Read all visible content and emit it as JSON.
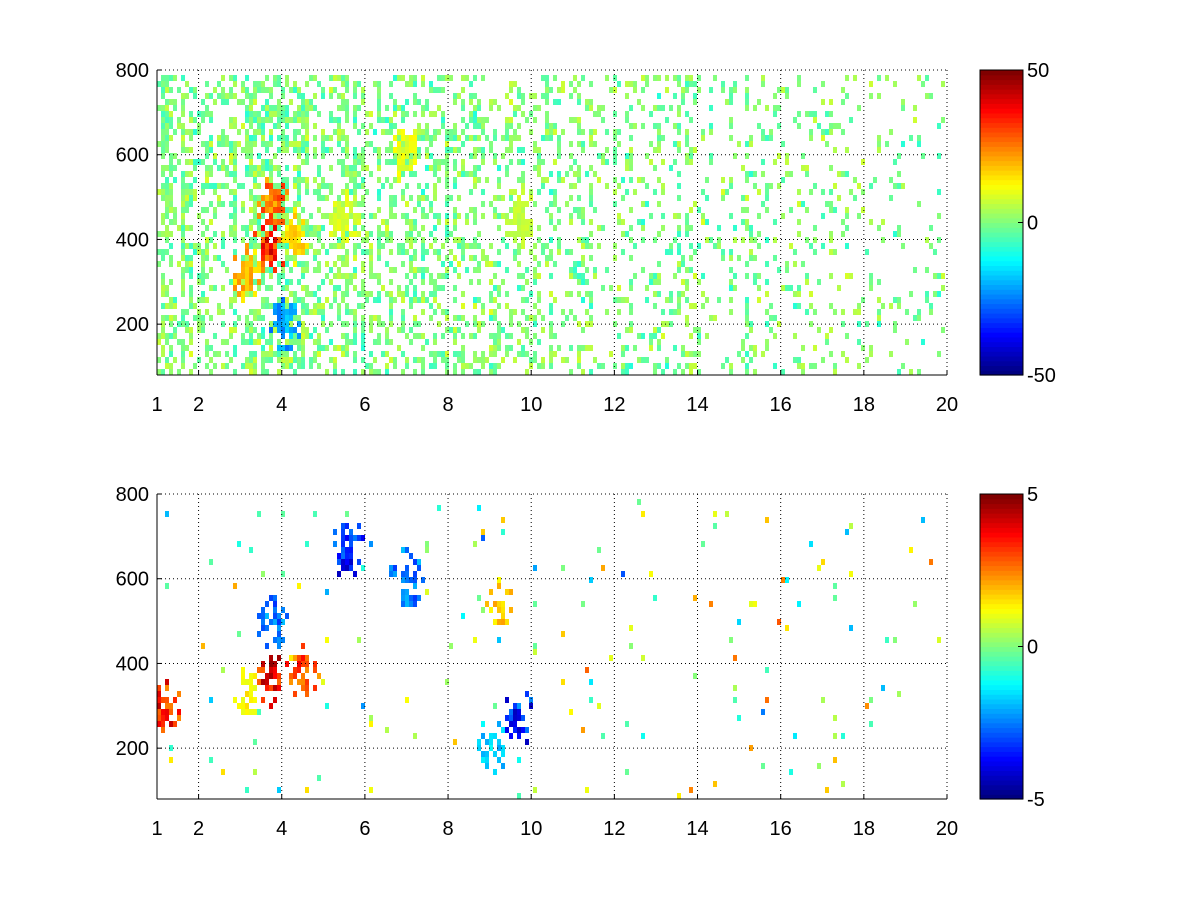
{
  "chart_data": [
    {
      "type": "heatmap",
      "title": "",
      "xlabel": "",
      "ylabel": "",
      "xlim": [
        1,
        20
      ],
      "ylim": [
        80,
        800
      ],
      "x_ticks": [
        "1",
        "2",
        "4",
        "6",
        "8",
        "10",
        "12",
        "14",
        "16",
        "18",
        "20"
      ],
      "x_tick_values": [
        1,
        2,
        4,
        6,
        8,
        10,
        12,
        14,
        16,
        18,
        20
      ],
      "y_ticks": [
        "200",
        "400",
        "600",
        "800"
      ],
      "y_tick_values": [
        200,
        400,
        600,
        800
      ],
      "grid": true,
      "colorbar": {
        "min": -50,
        "max": 50,
        "tick_labels": [
          "50",
          "0",
          "-50"
        ],
        "tick_values": [
          50,
          0,
          -50
        ],
        "colormap": "jet"
      },
      "features": [
        {
          "x": 3.7,
          "y": 380,
          "value": 40
        },
        {
          "x": 3.8,
          "y": 480,
          "value": 30
        },
        {
          "x": 3.2,
          "y": 320,
          "value": 22
        },
        {
          "x": 4.3,
          "y": 400,
          "value": 18
        },
        {
          "x": 5.5,
          "y": 450,
          "value": 10
        },
        {
          "x": 7.0,
          "y": 600,
          "value": 12
        },
        {
          "x": 9.7,
          "y": 450,
          "value": 8
        },
        {
          "x": 4.1,
          "y": 200,
          "value": -25
        }
      ],
      "noise": {
        "density": 0.55,
        "value_range": [
          -15,
          15
        ],
        "x_fade": 0.85
      }
    },
    {
      "type": "heatmap",
      "title": "",
      "xlabel": "",
      "ylabel": "",
      "xlim": [
        1,
        20
      ],
      "ylim": [
        80,
        800
      ],
      "x_ticks": [
        "1",
        "2",
        "4",
        "6",
        "8",
        "10",
        "12",
        "14",
        "16",
        "18",
        "20"
      ],
      "x_tick_values": [
        1,
        2,
        4,
        6,
        8,
        10,
        12,
        14,
        16,
        18,
        20
      ],
      "y_ticks": [
        "200",
        "400",
        "600",
        "800"
      ],
      "y_tick_values": [
        200,
        400,
        600,
        800
      ],
      "grid": true,
      "colorbar": {
        "min": -5,
        "max": 5,
        "tick_labels": [
          "5",
          "0",
          "-5"
        ],
        "tick_values": [
          5,
          0,
          -5
        ],
        "colormap": "jet"
      },
      "features": [
        {
          "x": 3.7,
          "y": 360,
          "value": 4.5
        },
        {
          "x": 3.8,
          "y": 500,
          "value": -3
        },
        {
          "x": 3.2,
          "y": 320,
          "value": 1.5
        },
        {
          "x": 4.5,
          "y": 380,
          "value": 3.5
        },
        {
          "x": 5.6,
          "y": 670,
          "value": -4
        },
        {
          "x": 7.0,
          "y": 600,
          "value": -3
        },
        {
          "x": 9.2,
          "y": 530,
          "value": 2
        },
        {
          "x": 9.7,
          "y": 270,
          "value": -4
        },
        {
          "x": 9.1,
          "y": 200,
          "value": -2
        },
        {
          "x": 1.2,
          "y": 300,
          "value": 4
        }
      ],
      "noise": {
        "density": 0.02,
        "value_range": [
          -5,
          5
        ],
        "x_fade": 0.0
      }
    }
  ]
}
